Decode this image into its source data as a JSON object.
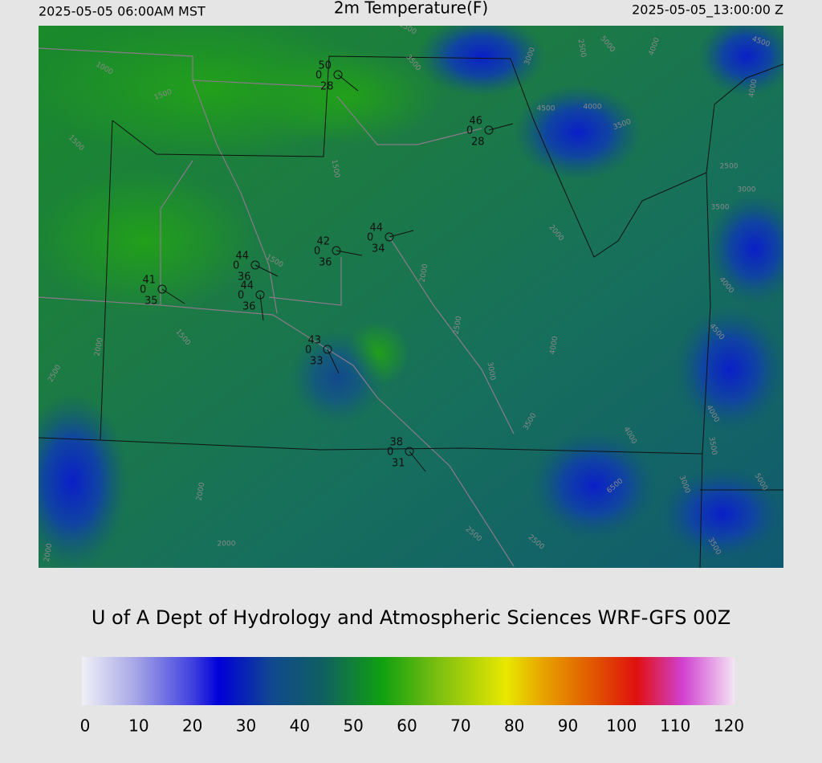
{
  "header": {
    "left": "2025-05-05 06:00AM MST",
    "title": "2m Temperature(F)",
    "right": "2025-05-05_13:00:00 Z"
  },
  "stations": [
    {
      "temperature": 50,
      "pressure": 0,
      "dewpoint": 28
    },
    {
      "temperature": 46,
      "pressure": 0,
      "dewpoint": 28
    },
    {
      "temperature": 44,
      "pressure": 0,
      "dewpoint": 34
    },
    {
      "temperature": 42,
      "pressure": 0,
      "dewpoint": 36
    },
    {
      "temperature": 44,
      "pressure": 0,
      "dewpoint": 36
    },
    {
      "temperature": 44,
      "pressure": 0,
      "dewpoint": 36
    },
    {
      "temperature": 41,
      "pressure": 0,
      "dewpoint": 35
    },
    {
      "temperature": 43,
      "pressure": 0,
      "dewpoint": 33
    },
    {
      "temperature": 38,
      "pressure": 0,
      "dewpoint": 31
    }
  ],
  "contour_labels": [
    1000,
    1500,
    1500,
    1500,
    1500,
    1500,
    2000,
    2500,
    2000,
    2000,
    2000,
    2000,
    2500,
    3000,
    3500,
    4000,
    3000,
    3500,
    2500,
    4500,
    4000,
    3500,
    5000,
    4000,
    4500,
    4000,
    2500,
    3000,
    3500,
    2000,
    4000,
    4500,
    4000,
    3500,
    5000,
    3000,
    4000,
    6500,
    2500,
    2500,
    3500,
    1500
  ],
  "credit": "U of A Dept of Hydrology and Atmospheric Sciences WRF-GFS 00Z",
  "colorbar": {
    "lim": [
      0,
      120
    ],
    "ticks": [
      0,
      10,
      20,
      30,
      40,
      50,
      60,
      70,
      80,
      90,
      100,
      110,
      120
    ]
  }
}
